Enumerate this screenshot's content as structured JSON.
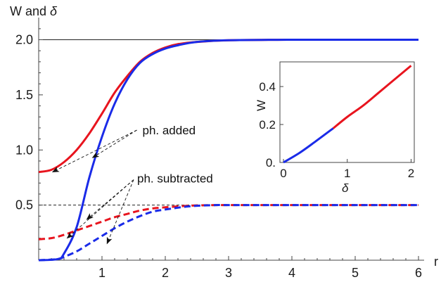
{
  "chart_data": [
    {
      "type": "line",
      "ylabel_prefix": "W and ",
      "ylabel_symbol": "δ",
      "xlabel": "r",
      "xlim": [
        0,
        6
      ],
      "ylim": [
        0,
        2.15
      ],
      "x_ticks": [
        {
          "value": 1,
          "label": "1"
        },
        {
          "value": 2,
          "label": "2"
        },
        {
          "value": 3,
          "label": "3"
        },
        {
          "value": 4,
          "label": "4"
        },
        {
          "value": 5,
          "label": "5"
        },
        {
          "value": 6,
          "label": "6"
        }
      ],
      "y_ticks": [
        {
          "value": 0.5,
          "label": "0.5"
        },
        {
          "value": 1.0,
          "label": "1.0"
        },
        {
          "value": 1.5,
          "label": "1.5"
        },
        {
          "value": 2.0,
          "label": "2.0"
        }
      ],
      "reference_lines": [
        {
          "y": 2.0,
          "style": "solid"
        },
        {
          "y": 0.5,
          "style": "dashed"
        }
      ],
      "series": [
        {
          "color": "#e8141e",
          "style": "solid",
          "x": [
            0,
            0.2,
            0.4,
            0.6,
            0.8,
            1.0,
            1.2,
            1.4,
            1.6,
            1.8,
            2.0,
            2.2,
            2.5,
            3.0,
            4.0,
            5.0,
            6.0
          ],
          "y": [
            0.8,
            0.82,
            0.89,
            1.0,
            1.15,
            1.33,
            1.52,
            1.67,
            1.8,
            1.88,
            1.93,
            1.96,
            1.98,
            1.995,
            2.0,
            2.0,
            2.0
          ]
        },
        {
          "color": "#1a2be8",
          "style": "solid",
          "x": [
            0,
            0.3,
            0.4,
            0.6,
            0.8,
            1.0,
            1.2,
            1.4,
            1.6,
            1.8,
            2.0,
            2.2,
            2.5,
            3.0,
            4.0,
            5.0,
            6.0
          ],
          "y": [
            0.0,
            0.01,
            0.06,
            0.3,
            0.75,
            1.12,
            1.42,
            1.64,
            1.79,
            1.87,
            1.92,
            1.95,
            1.98,
            1.995,
            2.0,
            2.0,
            2.0
          ]
        },
        {
          "color": "#e8141e",
          "style": "dashed",
          "x": [
            0,
            0.2,
            0.4,
            0.6,
            0.8,
            1.0,
            1.2,
            1.4,
            1.6,
            1.8,
            2.0,
            2.4,
            2.8,
            3.0,
            4.0,
            5.0,
            6.0
          ],
          "y": [
            0.19,
            0.2,
            0.23,
            0.27,
            0.31,
            0.35,
            0.39,
            0.42,
            0.45,
            0.47,
            0.48,
            0.495,
            0.5,
            0.5,
            0.5,
            0.5,
            0.5
          ]
        },
        {
          "color": "#1a2be8",
          "style": "dashed",
          "x": [
            0,
            0.3,
            0.4,
            0.6,
            0.8,
            1.0,
            1.2,
            1.4,
            1.6,
            1.8,
            2.0,
            2.4,
            2.8,
            3.0,
            4.0,
            5.0,
            6.0
          ],
          "y": [
            0.0,
            0.01,
            0.03,
            0.08,
            0.15,
            0.22,
            0.29,
            0.35,
            0.4,
            0.44,
            0.46,
            0.49,
            0.5,
            0.5,
            0.5,
            0.5,
            0.5
          ]
        }
      ],
      "annotations": [
        {
          "text": "ph. added",
          "anchor": {
            "x": 1.55,
            "y": 1.18
          },
          "arrow_targets": [
            {
              "x": 0.22,
              "y": 0.8
            },
            {
              "x": 0.85,
              "y": 0.93
            }
          ]
        },
        {
          "text": "ph. subtracted",
          "anchor": {
            "x": 1.5,
            "y": 0.73
          },
          "arrow_targets": [
            {
              "x": 0.45,
              "y": 0.2
            },
            {
              "x": 0.76,
              "y": 0.37
            },
            {
              "x": 1.08,
              "y": 0.15
            }
          ]
        }
      ]
    },
    {
      "type": "line",
      "title": "inset",
      "xlabel_symbol": "δ",
      "ylabel": "W",
      "xlim": [
        0,
        2.05
      ],
      "ylim": [
        0,
        0.53
      ],
      "x_ticks": [
        {
          "value": 0,
          "label": "0"
        },
        {
          "value": 1,
          "label": "1"
        },
        {
          "value": 2,
          "label": "2"
        }
      ],
      "y_ticks": [
        {
          "value": 0,
          "label": "0."
        },
        {
          "value": 0.2,
          "label": "0.2"
        },
        {
          "value": 0.4,
          "label": "0.4"
        }
      ],
      "series": [
        {
          "color": "#1a2be8",
          "x": [
            0,
            0.25,
            0.5,
            0.78
          ],
          "y": [
            0.0,
            0.05,
            0.11,
            0.18
          ]
        },
        {
          "color": "#e8141e",
          "x": [
            0.78,
            1.0,
            1.25,
            1.5,
            1.75,
            2.0
          ],
          "y": [
            0.18,
            0.24,
            0.3,
            0.37,
            0.44,
            0.51
          ]
        }
      ]
    }
  ]
}
